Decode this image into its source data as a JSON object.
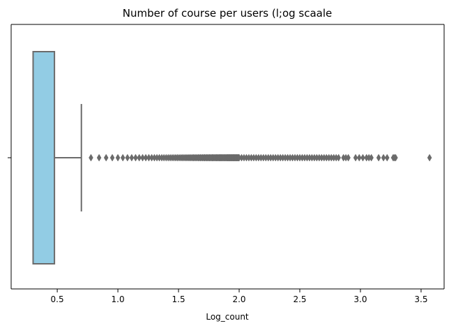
{
  "chart_data": {
    "type": "boxplot",
    "orientation": "horizontal",
    "title": "Number of course per users (l;og scaale",
    "xlabel": "Log_count",
    "ylabel": "",
    "xlim": [
      0.12,
      3.69
    ],
    "xticks": [
      0.5,
      1.0,
      1.5,
      2.0,
      2.5,
      3.0,
      3.5
    ],
    "xtick_labels": [
      "0.5",
      "1.0",
      "1.5",
      "2.0",
      "2.5",
      "3.0",
      "3.5"
    ],
    "grid": false,
    "box": {
      "q1": 0.301,
      "median": 0.301,
      "q3": 0.477,
      "whisker_low": 0.301,
      "whisker_high": 0.699
    },
    "outliers": [
      0.778,
      0.845,
      0.903,
      0.954,
      1.0,
      1.041,
      1.079,
      1.114,
      1.146,
      1.176,
      1.204,
      1.23,
      1.255,
      1.279,
      1.301,
      1.322,
      1.342,
      1.362,
      1.38,
      1.398,
      1.415,
      1.431,
      1.447,
      1.462,
      1.477,
      1.491,
      1.505,
      1.519,
      1.531,
      1.544,
      1.556,
      1.568,
      1.58,
      1.591,
      1.602,
      1.613,
      1.623,
      1.633,
      1.643,
      1.653,
      1.663,
      1.672,
      1.681,
      1.69,
      1.699,
      1.708,
      1.716,
      1.724,
      1.732,
      1.74,
      1.748,
      1.756,
      1.763,
      1.771,
      1.778,
      1.785,
      1.792,
      1.799,
      1.806,
      1.813,
      1.82,
      1.826,
      1.833,
      1.839,
      1.845,
      1.851,
      1.857,
      1.863,
      1.869,
      1.875,
      1.881,
      1.886,
      1.892,
      1.898,
      1.903,
      1.908,
      1.914,
      1.919,
      1.924,
      1.929,
      1.934,
      1.939,
      1.944,
      1.949,
      1.954,
      1.959,
      1.964,
      1.968,
      1.973,
      1.978,
      1.982,
      1.987,
      1.991,
      1.996,
      2.0,
      2.02,
      2.04,
      2.06,
      2.08,
      2.1,
      2.12,
      2.14,
      2.16,
      2.18,
      2.2,
      2.22,
      2.24,
      2.26,
      2.28,
      2.3,
      2.32,
      2.34,
      2.36,
      2.38,
      2.4,
      2.42,
      2.44,
      2.46,
      2.48,
      2.5,
      2.52,
      2.54,
      2.56,
      2.58,
      2.6,
      2.62,
      2.64,
      2.66,
      2.68,
      2.7,
      2.72,
      2.74,
      2.76,
      2.78,
      2.8,
      2.82,
      2.86,
      2.88,
      2.9,
      2.96,
      2.99,
      3.02,
      3.05,
      3.07,
      3.09,
      3.15,
      3.19,
      3.22,
      3.27,
      3.28,
      3.29,
      3.57
    ],
    "colors": {
      "box_fill": "#92cce4",
      "lines": "#6b6b6b",
      "outlier": "#6b6b6b",
      "axes": "#000000"
    }
  }
}
